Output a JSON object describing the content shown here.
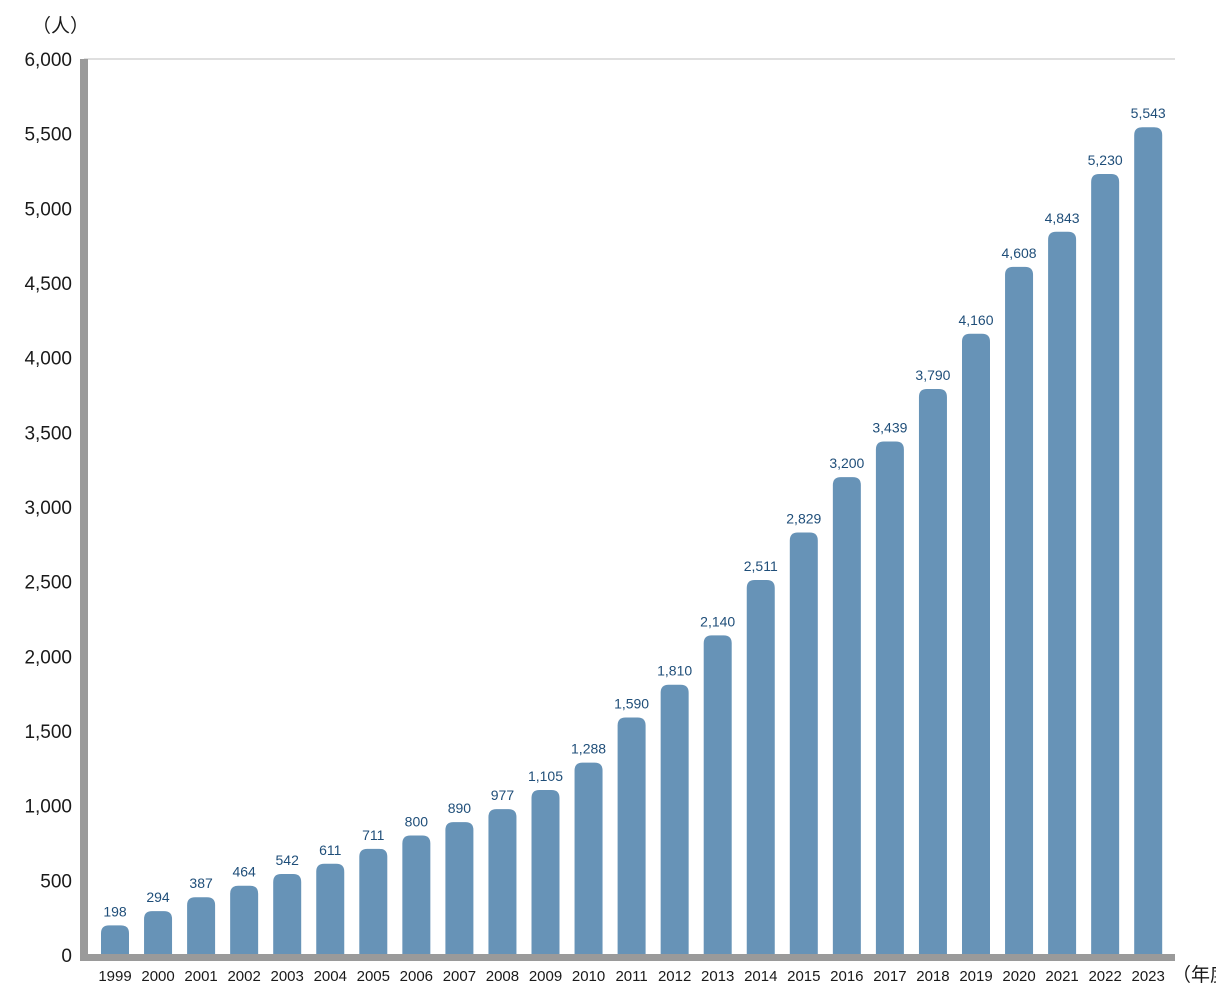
{
  "chart_data": {
    "type": "bar",
    "title": "",
    "ylabel": "（人）",
    "xlabel": "（年度）",
    "ylim": [
      0,
      6000
    ],
    "yticks": [
      0,
      500,
      1000,
      1500,
      2000,
      2500,
      3000,
      3500,
      4000,
      4500,
      5000,
      5500,
      6000
    ],
    "ytick_labels": [
      "0",
      "500",
      "1,000",
      "1,500",
      "2,000",
      "2,500",
      "3,000",
      "3,500",
      "4,000",
      "4,500",
      "5,000",
      "5,500",
      "6,000"
    ],
    "grid": "top line only",
    "categories": [
      "1999",
      "2000",
      "2001",
      "2002",
      "2003",
      "2004",
      "2005",
      "2006",
      "2007",
      "2008",
      "2009",
      "2010",
      "2011",
      "2012",
      "2013",
      "2014",
      "2015",
      "2016",
      "2017",
      "2018",
      "2019",
      "2020",
      "2021",
      "2022",
      "2023"
    ],
    "values": [
      198,
      294,
      387,
      464,
      542,
      611,
      711,
      800,
      890,
      977,
      1105,
      1288,
      1590,
      1810,
      2140,
      2511,
      2829,
      3200,
      3439,
      3790,
      4160,
      4608,
      4843,
      5230,
      5543
    ],
    "value_labels": [
      "198",
      "294",
      "387",
      "464",
      "542",
      "611",
      "711",
      "800",
      "890",
      "977",
      "1,105",
      "1,288",
      "1,590",
      "1,810",
      "2,140",
      "2,511",
      "2,829",
      "3,200",
      "3,439",
      "3,790",
      "4,160",
      "4,608",
      "4,843",
      "5,230",
      "5,543"
    ],
    "colors": {
      "bar": "#6793b7",
      "data_label": "#1f4e79",
      "axis": "#9a9a9a",
      "gridline": "#cccccc"
    }
  }
}
